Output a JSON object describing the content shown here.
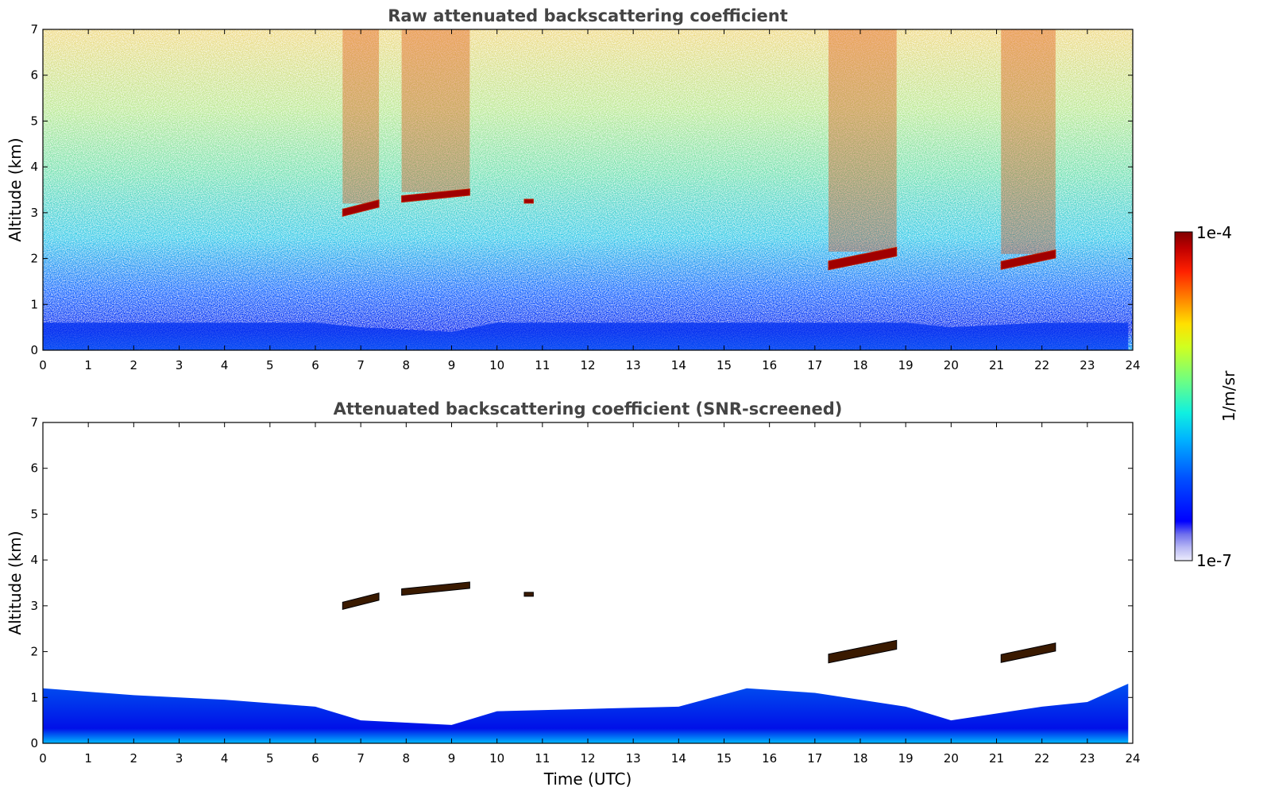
{
  "chart_data": [
    {
      "type": "heatmap",
      "title": "Raw attenuated backscattering coefficient",
      "ylabel": "Altitude (km)",
      "xlabel": "",
      "xlim": [
        0,
        24
      ],
      "ylim": [
        0,
        7
      ],
      "x_ticks": [
        "0",
        "1",
        "2",
        "3",
        "4",
        "5",
        "6",
        "7",
        "8",
        "9",
        "10",
        "11",
        "12",
        "13",
        "14",
        "15",
        "16",
        "17",
        "18",
        "19",
        "20",
        "21",
        "22",
        "23",
        "24"
      ],
      "y_ticks": [
        "0",
        "1",
        "2",
        "3",
        "4",
        "5",
        "6",
        "7"
      ],
      "cloud_layers": [
        {
          "t_start": 6.6,
          "t_end": 7.4,
          "altitude_km": [
            3.0,
            3.2
          ]
        },
        {
          "t_start": 7.9,
          "t_end": 9.4,
          "altitude_km": [
            3.3,
            3.45
          ]
        },
        {
          "t_start": 10.6,
          "t_end": 10.8,
          "altitude_km": [
            3.25,
            3.25
          ]
        },
        {
          "t_start": 17.3,
          "t_end": 18.8,
          "altitude_km": [
            1.85,
            2.15
          ]
        },
        {
          "t_start": 21.1,
          "t_end": 22.3,
          "altitude_km": [
            1.85,
            2.1
          ]
        }
      ]
    },
    {
      "type": "heatmap",
      "title": "Attenuated backscattering coefficient (SNR-screened)",
      "ylabel": "Altitude (km)",
      "xlabel": "Time (UTC)",
      "xlim": [
        0,
        24
      ],
      "ylim": [
        0,
        7
      ],
      "x_ticks": [
        "0",
        "1",
        "2",
        "3",
        "4",
        "5",
        "6",
        "7",
        "8",
        "9",
        "10",
        "11",
        "12",
        "13",
        "14",
        "15",
        "16",
        "17",
        "18",
        "19",
        "20",
        "21",
        "22",
        "23",
        "24"
      ],
      "y_ticks": [
        "0",
        "1",
        "2",
        "3",
        "4",
        "5",
        "6",
        "7"
      ],
      "cloud_layers": [
        {
          "t_start": 6.6,
          "t_end": 7.4,
          "altitude_km": [
            3.0,
            3.2
          ]
        },
        {
          "t_start": 7.9,
          "t_end": 9.4,
          "altitude_km": [
            3.3,
            3.45
          ]
        },
        {
          "t_start": 10.6,
          "t_end": 10.8,
          "altitude_km": [
            3.25,
            3.25
          ]
        },
        {
          "t_start": 17.3,
          "t_end": 18.8,
          "altitude_km": [
            1.85,
            2.15
          ]
        },
        {
          "t_start": 21.1,
          "t_end": 22.3,
          "altitude_km": [
            1.85,
            2.1
          ]
        }
      ],
      "boundary_layer_top_km": [
        {
          "t": 0,
          "z": 1.2
        },
        {
          "t": 2,
          "z": 1.05
        },
        {
          "t": 4,
          "z": 0.95
        },
        {
          "t": 6,
          "z": 0.8
        },
        {
          "t": 7,
          "z": 0.5
        },
        {
          "t": 8,
          "z": 0.45
        },
        {
          "t": 9,
          "z": 0.4
        },
        {
          "t": 10,
          "z": 0.7
        },
        {
          "t": 12,
          "z": 0.75
        },
        {
          "t": 14,
          "z": 0.8
        },
        {
          "t": 15.5,
          "z": 1.2
        },
        {
          "t": 17,
          "z": 1.1
        },
        {
          "t": 19,
          "z": 0.8
        },
        {
          "t": 20,
          "z": 0.5
        },
        {
          "t": 22,
          "z": 0.8
        },
        {
          "t": 23,
          "z": 0.9
        },
        {
          "t": 23.9,
          "z": 1.3
        }
      ]
    }
  ],
  "colorbar": {
    "label": "1/m/sr",
    "max_label": "1e-4",
    "min_label": "1e-7",
    "scale": "log",
    "colormap": "jet",
    "colors": [
      "#e8e8f8",
      "#9090e8",
      "#0000ff",
      "#0060ff",
      "#00c0ff",
      "#40ffc0",
      "#a0ff60",
      "#ffff00",
      "#ffa000",
      "#ff3000",
      "#a00000",
      "#800000"
    ]
  }
}
